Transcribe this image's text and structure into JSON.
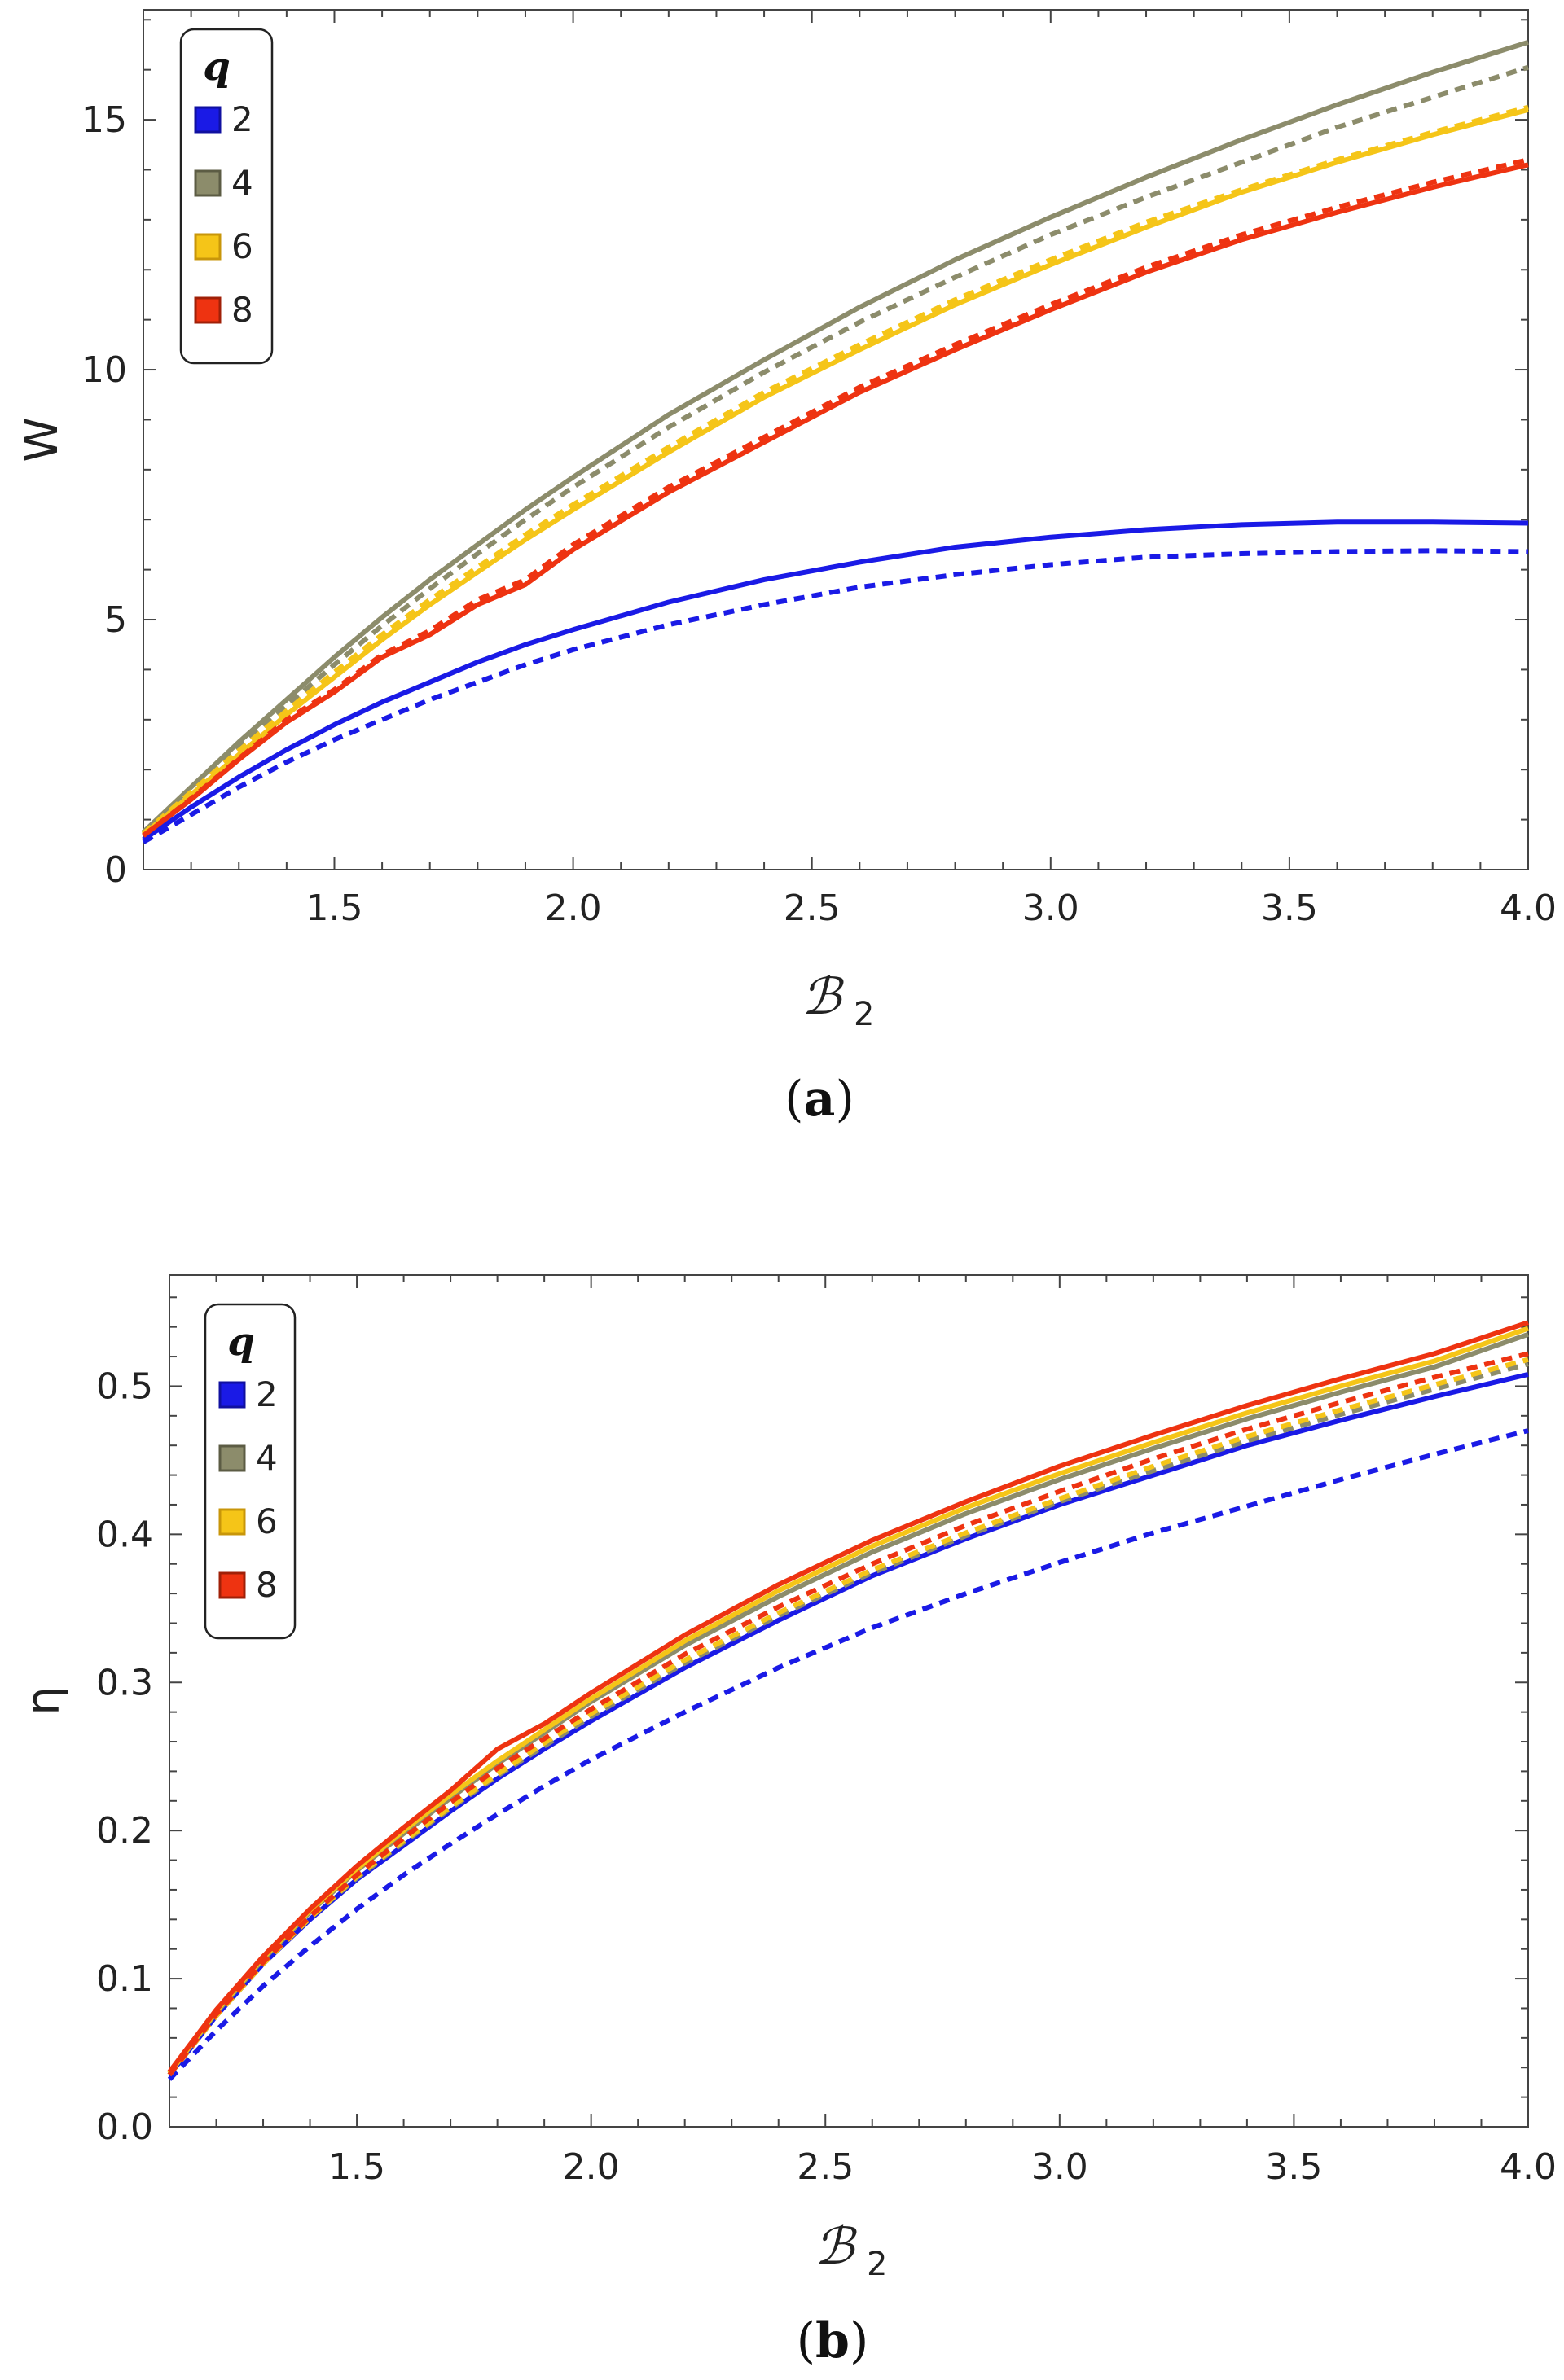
{
  "chart_data": [
    {
      "type": "line",
      "panel": "(a)",
      "caption_letter": "a",
      "ylabel": "W",
      "xlabel_main": "ℬ",
      "xlabel_sub": "2",
      "xlim": [
        1.1,
        4.0
      ],
      "ylim": [
        0,
        17.2
      ],
      "xticks": [
        "1.5",
        "2.0",
        "2.5",
        "3.0",
        "3.5",
        "4.0"
      ],
      "xtick_values": [
        1.5,
        2.0,
        2.5,
        3.0,
        3.5,
        4.0
      ],
      "yticks": [
        "0",
        "5",
        "10",
        "15"
      ],
      "ytick_values": [
        0,
        5,
        10,
        15
      ],
      "legend": {
        "title": "q",
        "position": "top-left",
        "entries": [
          "2",
          "4",
          "6",
          "8"
        ]
      },
      "x": [
        1.1,
        1.2,
        1.3,
        1.4,
        1.5,
        1.6,
        1.7,
        1.8,
        1.9,
        2.0,
        2.2,
        2.4,
        2.6,
        2.8,
        3.0,
        3.2,
        3.4,
        3.6,
        3.8,
        4.0
      ],
      "series": [
        {
          "name": "2",
          "style": "solid",
          "color": "#1a1ae6",
          "values": [
            0.6,
            1.25,
            1.85,
            2.4,
            2.9,
            3.35,
            3.75,
            4.15,
            4.5,
            4.8,
            5.35,
            5.8,
            6.15,
            6.45,
            6.65,
            6.8,
            6.9,
            6.95,
            6.95,
            6.93
          ]
        },
        {
          "name": "2",
          "style": "dashed",
          "color": "#1a1ae6",
          "values": [
            0.55,
            1.1,
            1.65,
            2.15,
            2.6,
            3.0,
            3.4,
            3.75,
            4.1,
            4.4,
            4.9,
            5.3,
            5.65,
            5.9,
            6.1,
            6.25,
            6.32,
            6.36,
            6.38,
            6.36
          ]
        },
        {
          "name": "4",
          "style": "solid",
          "color": "#8c8c6b",
          "values": [
            0.75,
            1.65,
            2.55,
            3.4,
            4.25,
            5.05,
            5.8,
            6.5,
            7.2,
            7.85,
            9.1,
            10.2,
            11.25,
            12.2,
            13.05,
            13.85,
            14.6,
            15.3,
            15.95,
            16.55
          ]
        },
        {
          "name": "4",
          "style": "dashed",
          "color": "#8c8c6b",
          "values": [
            0.72,
            1.58,
            2.45,
            3.28,
            4.1,
            4.88,
            5.62,
            6.32,
            7.0,
            7.65,
            8.85,
            9.95,
            10.95,
            11.85,
            12.7,
            13.45,
            14.15,
            14.85,
            15.45,
            16.05
          ]
        },
        {
          "name": "6",
          "style": "solid",
          "color": "#f5c518",
          "values": [
            0.7,
            1.5,
            2.3,
            3.1,
            3.85,
            4.6,
            5.3,
            5.95,
            6.6,
            7.2,
            8.35,
            9.45,
            10.4,
            11.3,
            12.1,
            12.85,
            13.55,
            14.15,
            14.7,
            15.2
          ]
        },
        {
          "name": "6",
          "style": "dashed",
          "color": "#f5c518",
          "values": [
            0.72,
            1.55,
            2.38,
            3.18,
            3.95,
            4.7,
            5.4,
            6.05,
            6.7,
            7.3,
            8.45,
            9.55,
            10.5,
            11.4,
            12.2,
            12.95,
            13.6,
            14.2,
            14.75,
            15.25
          ]
        },
        {
          "name": "8",
          "style": "solid",
          "color": "#ee3311",
          "values": [
            0.68,
            1.4,
            2.2,
            2.95,
            3.55,
            4.25,
            4.7,
            5.3,
            5.7,
            6.4,
            7.55,
            8.55,
            9.55,
            10.4,
            11.2,
            11.95,
            12.6,
            13.15,
            13.65,
            14.1
          ]
        },
        {
          "name": "8",
          "style": "dashed",
          "color": "#ee3311",
          "values": [
            0.68,
            1.42,
            2.22,
            3.0,
            3.6,
            4.3,
            4.78,
            5.4,
            5.8,
            6.5,
            7.65,
            8.65,
            9.65,
            10.5,
            11.3,
            12.05,
            12.7,
            13.25,
            13.75,
            14.2
          ]
        }
      ]
    },
    {
      "type": "line",
      "panel": "(b)",
      "caption_letter": "b",
      "ylabel": "η",
      "xlabel_main": "ℬ",
      "xlabel_sub": "2",
      "xlim": [
        1.1,
        4.0
      ],
      "ylim": [
        0,
        0.575
      ],
      "xticks": [
        "1.5",
        "2.0",
        "2.5",
        "3.0",
        "3.5",
        "4.0"
      ],
      "xtick_values": [
        1.5,
        2.0,
        2.5,
        3.0,
        3.5,
        4.0
      ],
      "yticks": [
        "0.0",
        "0.1",
        "0.2",
        "0.3",
        "0.4",
        "0.5"
      ],
      "ytick_values": [
        0.0,
        0.1,
        0.2,
        0.3,
        0.4,
        0.5
      ],
      "legend": {
        "title": "q",
        "position": "top-left",
        "entries": [
          "2",
          "4",
          "6",
          "8"
        ]
      },
      "x": [
        1.1,
        1.2,
        1.3,
        1.4,
        1.5,
        1.6,
        1.7,
        1.8,
        1.9,
        2.0,
        2.2,
        2.4,
        2.6,
        2.8,
        3.0,
        3.2,
        3.4,
        3.6,
        3.8,
        4.0
      ],
      "series": [
        {
          "name": "2",
          "style": "solid",
          "color": "#1a1ae6",
          "values": [
            0.035,
            0.075,
            0.11,
            0.14,
            0.167,
            0.19,
            0.213,
            0.235,
            0.255,
            0.274,
            0.31,
            0.342,
            0.372,
            0.397,
            0.42,
            0.44,
            0.46,
            0.477,
            0.493,
            0.508
          ]
        },
        {
          "name": "2",
          "style": "dashed",
          "color": "#1a1ae6",
          "values": [
            0.032,
            0.065,
            0.095,
            0.122,
            0.147,
            0.17,
            0.191,
            0.211,
            0.23,
            0.248,
            0.28,
            0.31,
            0.337,
            0.36,
            0.381,
            0.401,
            0.419,
            0.437,
            0.454,
            0.47
          ]
        },
        {
          "name": "4",
          "style": "solid",
          "color": "#8c8c6b",
          "values": [
            0.036,
            0.077,
            0.113,
            0.145,
            0.173,
            0.198,
            0.222,
            0.245,
            0.266,
            0.287,
            0.325,
            0.358,
            0.388,
            0.414,
            0.437,
            0.458,
            0.478,
            0.496,
            0.513,
            0.535
          ]
        },
        {
          "name": "4",
          "style": "dashed",
          "color": "#8c8c6b",
          "values": [
            0.035,
            0.075,
            0.11,
            0.141,
            0.168,
            0.192,
            0.215,
            0.237,
            0.257,
            0.277,
            0.313,
            0.345,
            0.374,
            0.399,
            0.422,
            0.443,
            0.463,
            0.481,
            0.498,
            0.515
          ]
        },
        {
          "name": "6",
          "style": "solid",
          "color": "#f5c518",
          "values": [
            0.036,
            0.078,
            0.114,
            0.146,
            0.174,
            0.2,
            0.224,
            0.247,
            0.268,
            0.289,
            0.328,
            0.362,
            0.392,
            0.418,
            0.441,
            0.462,
            0.482,
            0.5,
            0.517,
            0.539
          ]
        },
        {
          "name": "6",
          "style": "dashed",
          "color": "#f5c518",
          "values": [
            0.035,
            0.075,
            0.11,
            0.141,
            0.169,
            0.193,
            0.216,
            0.238,
            0.259,
            0.279,
            0.315,
            0.347,
            0.376,
            0.401,
            0.424,
            0.446,
            0.466,
            0.484,
            0.501,
            0.518
          ]
        },
        {
          "name": "8",
          "style": "solid",
          "color": "#ee3311",
          "values": [
            0.037,
            0.079,
            0.115,
            0.147,
            0.176,
            0.202,
            0.227,
            0.255,
            0.272,
            0.293,
            0.332,
            0.366,
            0.396,
            0.422,
            0.446,
            0.467,
            0.487,
            0.505,
            0.522,
            0.543
          ]
        },
        {
          "name": "8",
          "style": "dashed",
          "color": "#ee3311",
          "values": [
            0.035,
            0.076,
            0.111,
            0.142,
            0.17,
            0.195,
            0.219,
            0.242,
            0.262,
            0.282,
            0.319,
            0.351,
            0.38,
            0.406,
            0.429,
            0.451,
            0.471,
            0.489,
            0.506,
            0.522
          ]
        }
      ]
    }
  ]
}
